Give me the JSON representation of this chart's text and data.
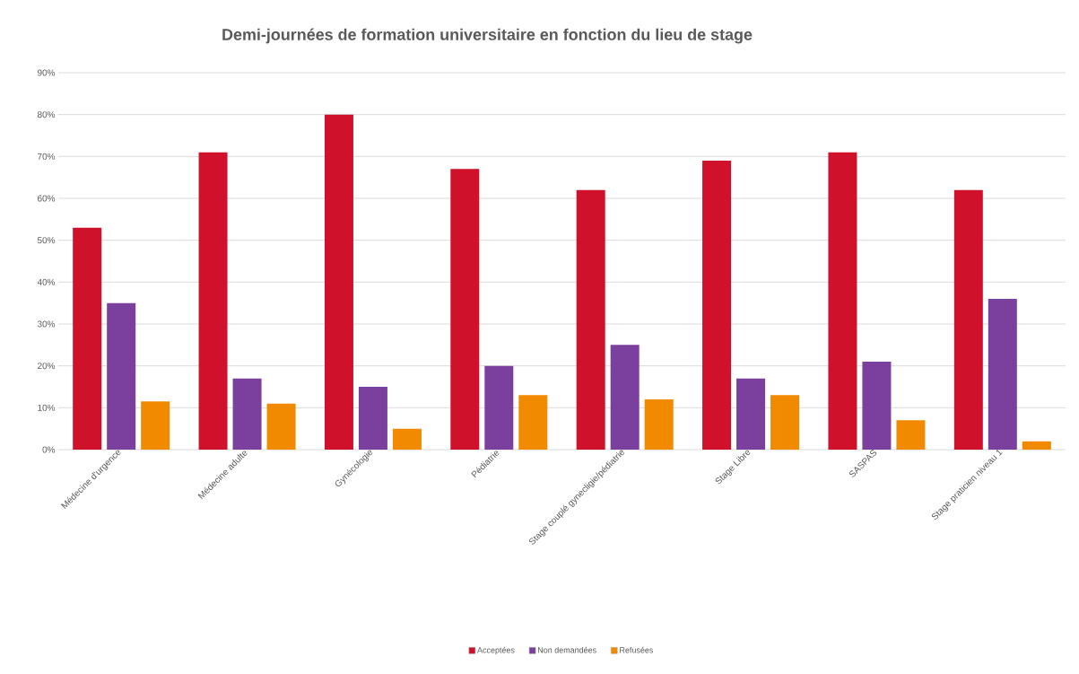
{
  "chart_data": {
    "type": "bar",
    "title": "Demi-journées de formation universitaire en fonction du lieu de stage",
    "categories": [
      "Médecine d'urgence",
      "Médecine adulte",
      "Gynécologie",
      "Pédiatrie",
      "Stage couplé gynecligie/pédiatrie",
      "Stage Libre",
      "SASPAS",
      "Stage praticien niveau 1"
    ],
    "series": [
      {
        "name": "Acceptées",
        "color": "#d0112b",
        "values": [
          53,
          71,
          80,
          67,
          62,
          69,
          71,
          62
        ]
      },
      {
        "name": "Non demandées",
        "color": "#7b3f9e",
        "values": [
          35,
          17,
          15,
          20,
          25,
          17,
          21,
          36
        ]
      },
      {
        "name": "Refusées",
        "color": "#f28a00",
        "values": [
          11.5,
          11,
          5,
          13,
          12,
          13,
          7,
          2
        ]
      }
    ],
    "ylim": [
      0,
      90
    ],
    "yticks": [
      {
        "value": 0,
        "label": "0%"
      },
      {
        "value": 10,
        "label": "10%"
      },
      {
        "value": 20,
        "label": "20%"
      },
      {
        "value": 30,
        "label": "30%"
      },
      {
        "value": 40,
        "label": "40%"
      },
      {
        "value": 50,
        "label": "50%"
      },
      {
        "value": 60,
        "label": "60%"
      },
      {
        "value": 70,
        "label": "70%"
      },
      {
        "value": 80,
        "label": "80%"
      },
      {
        "value": 90,
        "label": "90%"
      }
    ],
    "grid": "y",
    "legend": "bottom"
  }
}
